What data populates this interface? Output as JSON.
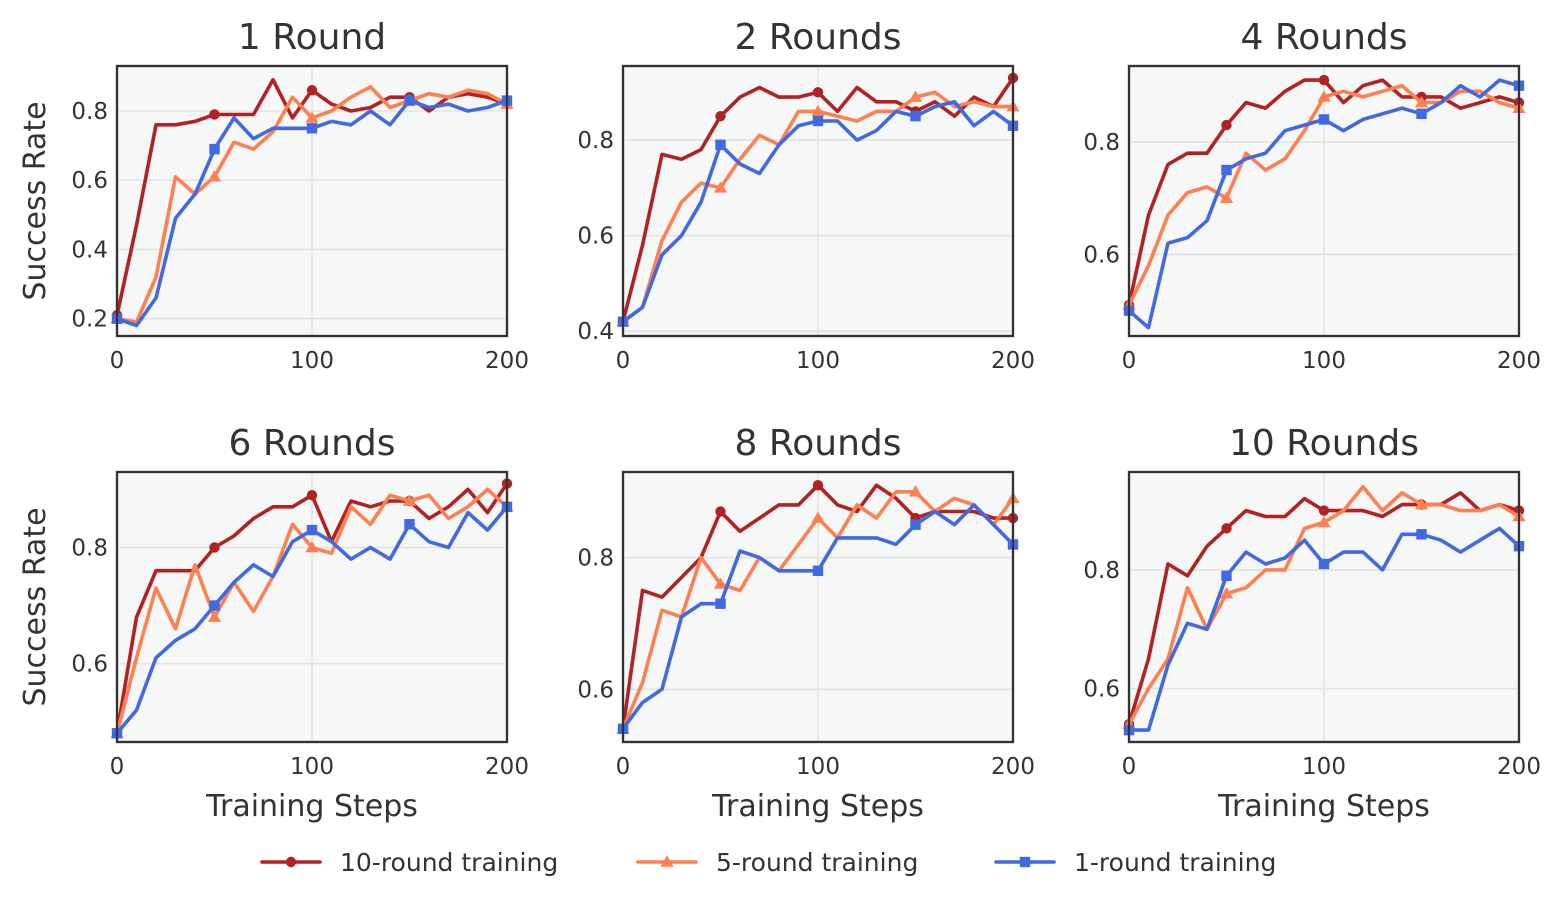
{
  "colors": {
    "10-round training": "#b22222",
    "5-round training": "#ff7f50",
    "1-round training": "#4169e1"
  },
  "chart_data": [
    {
      "type": "line",
      "title": "1 Round",
      "xlabel": "",
      "ylabel": "Success Rate",
      "xlim": [
        0,
        200
      ],
      "ylim": [
        0.15,
        0.93
      ],
      "xticks": [
        "0",
        "100",
        "200"
      ],
      "yticks": [
        "0.2",
        "0.4",
        "0.6",
        "0.8"
      ],
      "ytick_values": [
        0.2,
        0.4,
        0.6,
        0.8
      ],
      "x": [
        0,
        10,
        20,
        30,
        40,
        50,
        60,
        70,
        80,
        90,
        100,
        110,
        120,
        130,
        140,
        150,
        160,
        170,
        180,
        190,
        200
      ],
      "series": [
        {
          "name": "10-round training",
          "marker": "circle",
          "values": [
            0.21,
            0.47,
            0.76,
            0.76,
            0.77,
            0.79,
            0.79,
            0.79,
            0.89,
            0.78,
            0.86,
            0.82,
            0.8,
            0.81,
            0.84,
            0.84,
            0.8,
            0.84,
            0.85,
            0.84,
            0.82
          ]
        },
        {
          "name": "5-round training",
          "marker": "triangle",
          "values": [
            0.2,
            0.19,
            0.32,
            0.61,
            0.56,
            0.61,
            0.71,
            0.69,
            0.74,
            0.84,
            0.78,
            0.8,
            0.84,
            0.87,
            0.81,
            0.83,
            0.85,
            0.84,
            0.86,
            0.85,
            0.82
          ]
        },
        {
          "name": "1-round training",
          "marker": "square",
          "values": [
            0.2,
            0.18,
            0.26,
            0.49,
            0.56,
            0.69,
            0.78,
            0.72,
            0.75,
            0.75,
            0.75,
            0.77,
            0.76,
            0.8,
            0.76,
            0.83,
            0.81,
            0.82,
            0.8,
            0.81,
            0.83
          ]
        }
      ]
    },
    {
      "type": "line",
      "title": "2 Rounds",
      "xlabel": "",
      "ylabel": "",
      "xlim": [
        0,
        200
      ],
      "ylim": [
        0.39,
        0.955
      ],
      "xticks": [
        "0",
        "100",
        "200"
      ],
      "yticks": [
        "0.4",
        "0.6",
        "0.8"
      ],
      "ytick_values": [
        0.4,
        0.6,
        0.8
      ],
      "x": [
        0,
        10,
        20,
        30,
        40,
        50,
        60,
        70,
        80,
        90,
        100,
        110,
        120,
        130,
        140,
        150,
        160,
        170,
        180,
        190,
        200
      ],
      "series": [
        {
          "name": "10-round training",
          "marker": "circle",
          "values": [
            0.42,
            0.58,
            0.77,
            0.76,
            0.78,
            0.85,
            0.89,
            0.91,
            0.89,
            0.89,
            0.9,
            0.86,
            0.91,
            0.88,
            0.88,
            0.86,
            0.88,
            0.85,
            0.89,
            0.87,
            0.93
          ]
        },
        {
          "name": "5-round training",
          "marker": "triangle",
          "values": [
            0.42,
            0.45,
            0.59,
            0.67,
            0.71,
            0.7,
            0.76,
            0.81,
            0.79,
            0.86,
            0.86,
            0.85,
            0.84,
            0.86,
            0.86,
            0.89,
            0.9,
            0.87,
            0.88,
            0.87,
            0.87
          ]
        },
        {
          "name": "1-round training",
          "marker": "square",
          "values": [
            0.42,
            0.45,
            0.56,
            0.6,
            0.67,
            0.79,
            0.75,
            0.73,
            0.79,
            0.83,
            0.84,
            0.84,
            0.8,
            0.82,
            0.86,
            0.85,
            0.87,
            0.88,
            0.83,
            0.86,
            0.83
          ]
        }
      ]
    },
    {
      "type": "line",
      "title": "4 Rounds",
      "xlabel": "",
      "ylabel": "",
      "xlim": [
        0,
        200
      ],
      "ylim": [
        0.455,
        0.935
      ],
      "xticks": [
        "0",
        "100",
        "200"
      ],
      "yticks": [
        "0.6",
        "0.8"
      ],
      "ytick_values": [
        0.6,
        0.8
      ],
      "x": [
        0,
        10,
        20,
        30,
        40,
        50,
        60,
        70,
        80,
        90,
        100,
        110,
        120,
        130,
        140,
        150,
        160,
        170,
        180,
        190,
        200
      ],
      "series": [
        {
          "name": "10-round training",
          "marker": "circle",
          "values": [
            0.51,
            0.67,
            0.76,
            0.78,
            0.78,
            0.83,
            0.87,
            0.86,
            0.89,
            0.91,
            0.91,
            0.87,
            0.9,
            0.91,
            0.88,
            0.88,
            0.88,
            0.86,
            0.87,
            0.88,
            0.87
          ]
        },
        {
          "name": "5-round training",
          "marker": "triangle",
          "values": [
            0.51,
            0.58,
            0.67,
            0.71,
            0.72,
            0.7,
            0.78,
            0.75,
            0.77,
            0.82,
            0.88,
            0.89,
            0.88,
            0.89,
            0.9,
            0.87,
            0.87,
            0.89,
            0.89,
            0.87,
            0.86
          ]
        },
        {
          "name": "1-round training",
          "marker": "square",
          "values": [
            0.5,
            0.47,
            0.62,
            0.63,
            0.66,
            0.75,
            0.77,
            0.78,
            0.82,
            0.83,
            0.84,
            0.82,
            0.84,
            0.85,
            0.86,
            0.85,
            0.87,
            0.9,
            0.88,
            0.91,
            0.9
          ]
        }
      ]
    },
    {
      "type": "line",
      "title": "6 Rounds",
      "xlabel": "Training Steps",
      "ylabel": "Success Rate",
      "xlim": [
        0,
        200
      ],
      "ylim": [
        0.465,
        0.93
      ],
      "xticks": [
        "0",
        "100",
        "200"
      ],
      "yticks": [
        "0.6",
        "0.8"
      ],
      "ytick_values": [
        0.6,
        0.8
      ],
      "x": [
        0,
        10,
        20,
        30,
        40,
        50,
        60,
        70,
        80,
        90,
        100,
        110,
        120,
        130,
        140,
        150,
        160,
        170,
        180,
        190,
        200
      ],
      "series": [
        {
          "name": "10-round training",
          "marker": "circle",
          "values": [
            0.48,
            0.68,
            0.76,
            0.76,
            0.76,
            0.8,
            0.82,
            0.85,
            0.87,
            0.87,
            0.89,
            0.81,
            0.88,
            0.87,
            0.88,
            0.88,
            0.85,
            0.87,
            0.9,
            0.86,
            0.91
          ]
        },
        {
          "name": "5-round training",
          "marker": "triangle",
          "values": [
            0.48,
            0.61,
            0.73,
            0.66,
            0.77,
            0.68,
            0.74,
            0.69,
            0.75,
            0.84,
            0.8,
            0.79,
            0.87,
            0.84,
            0.89,
            0.88,
            0.89,
            0.85,
            0.87,
            0.9,
            0.87
          ]
        },
        {
          "name": "1-round training",
          "marker": "square",
          "values": [
            0.48,
            0.52,
            0.61,
            0.64,
            0.66,
            0.7,
            0.74,
            0.77,
            0.75,
            0.81,
            0.83,
            0.81,
            0.78,
            0.8,
            0.78,
            0.84,
            0.81,
            0.8,
            0.86,
            0.83,
            0.87
          ]
        }
      ]
    },
    {
      "type": "line",
      "title": "8 Rounds",
      "xlabel": "Training Steps",
      "ylabel": "",
      "xlim": [
        0,
        200
      ],
      "ylim": [
        0.52,
        0.93
      ],
      "xticks": [
        "0",
        "100",
        "200"
      ],
      "yticks": [
        "0.6",
        "0.8"
      ],
      "ytick_values": [
        0.6,
        0.8
      ],
      "x": [
        0,
        10,
        20,
        30,
        40,
        50,
        60,
        70,
        80,
        90,
        100,
        110,
        120,
        130,
        140,
        150,
        160,
        170,
        180,
        190,
        200
      ],
      "series": [
        {
          "name": "10-round training",
          "marker": "circle",
          "values": [
            0.54,
            0.75,
            0.74,
            0.77,
            0.8,
            0.87,
            0.84,
            0.86,
            0.88,
            0.88,
            0.91,
            0.88,
            0.87,
            0.91,
            0.89,
            0.86,
            0.87,
            0.87,
            0.87,
            0.86,
            0.86
          ]
        },
        {
          "name": "5-round training",
          "marker": "triangle",
          "values": [
            0.54,
            0.61,
            0.72,
            0.71,
            0.8,
            0.76,
            0.75,
            0.8,
            0.78,
            0.82,
            0.86,
            0.83,
            0.88,
            0.86,
            0.9,
            0.9,
            0.87,
            0.89,
            0.88,
            0.85,
            0.89
          ]
        },
        {
          "name": "1-round training",
          "marker": "square",
          "values": [
            0.54,
            0.58,
            0.6,
            0.71,
            0.73,
            0.73,
            0.81,
            0.8,
            0.78,
            0.78,
            0.78,
            0.83,
            0.83,
            0.83,
            0.82,
            0.85,
            0.87,
            0.85,
            0.88,
            0.85,
            0.82
          ]
        }
      ]
    },
    {
      "type": "line",
      "title": "10 Rounds",
      "xlabel": "Training Steps",
      "ylabel": "",
      "xlim": [
        0,
        200
      ],
      "ylim": [
        0.51,
        0.965
      ],
      "xticks": [
        "0",
        "100",
        "200"
      ],
      "yticks": [
        "0.6",
        "0.8"
      ],
      "ytick_values": [
        0.6,
        0.8
      ],
      "x": [
        0,
        10,
        20,
        30,
        40,
        50,
        60,
        70,
        80,
        90,
        100,
        110,
        120,
        130,
        140,
        150,
        160,
        170,
        180,
        190,
        200
      ],
      "series": [
        {
          "name": "10-round training",
          "marker": "circle",
          "values": [
            0.54,
            0.65,
            0.81,
            0.79,
            0.84,
            0.87,
            0.9,
            0.89,
            0.89,
            0.92,
            0.9,
            0.9,
            0.9,
            0.89,
            0.91,
            0.91,
            0.91,
            0.93,
            0.9,
            0.91,
            0.9
          ]
        },
        {
          "name": "5-round training",
          "marker": "triangle",
          "values": [
            0.54,
            0.6,
            0.65,
            0.77,
            0.7,
            0.76,
            0.77,
            0.8,
            0.8,
            0.87,
            0.88,
            0.9,
            0.94,
            0.9,
            0.93,
            0.91,
            0.91,
            0.9,
            0.9,
            0.91,
            0.89
          ]
        },
        {
          "name": "1-round training",
          "marker": "square",
          "values": [
            0.53,
            0.53,
            0.64,
            0.71,
            0.7,
            0.79,
            0.83,
            0.81,
            0.82,
            0.85,
            0.81,
            0.83,
            0.83,
            0.8,
            0.86,
            0.86,
            0.85,
            0.83,
            0.85,
            0.87,
            0.84
          ]
        }
      ]
    }
  ],
  "legend": {
    "placement": "bottom-center",
    "items": [
      "10-round training",
      "5-round training",
      "1-round training"
    ]
  }
}
